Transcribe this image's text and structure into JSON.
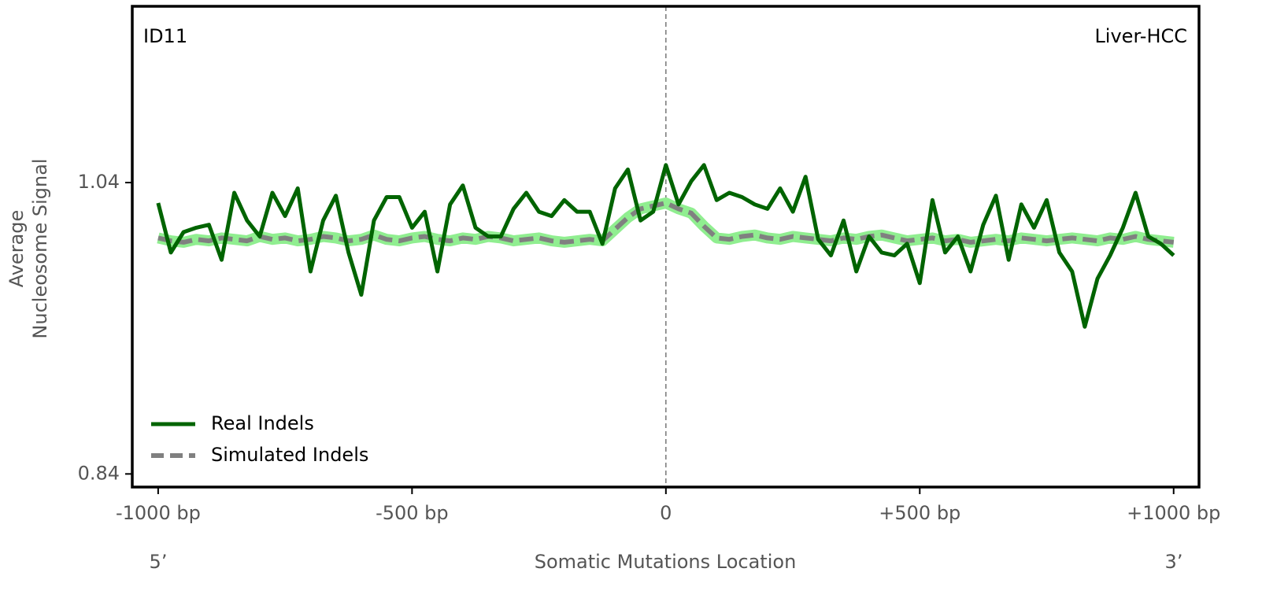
{
  "chart_data": {
    "type": "line",
    "annotations": {
      "top_left": "ID11",
      "top_right": "Liver-HCC",
      "left_end": "5’",
      "right_end": "3’"
    },
    "xlabel": "Somatic Mutations Location",
    "ylabel": [
      "Average",
      "Nucleosome Signal"
    ],
    "x": [
      -1000,
      -975,
      -950,
      -925,
      -900,
      -875,
      -850,
      -825,
      -800,
      -775,
      -750,
      -725,
      -700,
      -675,
      -650,
      -625,
      -600,
      -575,
      -550,
      -525,
      -500,
      -475,
      -450,
      -425,
      -400,
      -375,
      -350,
      -325,
      -300,
      -275,
      -250,
      -225,
      -200,
      -175,
      -150,
      -125,
      -100,
      -75,
      -50,
      -25,
      0,
      25,
      50,
      75,
      100,
      125,
      150,
      175,
      200,
      225,
      250,
      275,
      300,
      325,
      350,
      375,
      400,
      425,
      450,
      475,
      500,
      525,
      550,
      575,
      600,
      625,
      650,
      675,
      700,
      725,
      750,
      775,
      800,
      825,
      850,
      875,
      900,
      925,
      950,
      975,
      1000
    ],
    "series": [
      {
        "name": "Real Indels",
        "color": "#006400",
        "values": [
          1.026,
          0.992,
          1.006,
          1.009,
          1.011,
          0.987,
          1.033,
          1.014,
          1.003,
          1.033,
          1.017,
          1.036,
          0.979,
          1.014,
          1.031,
          0.992,
          0.963,
          1.014,
          1.03,
          1.03,
          1.009,
          1.02,
          0.979,
          1.025,
          1.038,
          1.009,
          1.003,
          1.003,
          1.022,
          1.033,
          1.02,
          1.017,
          1.028,
          1.02,
          1.02,
          0.998,
          1.036,
          1.049,
          1.014,
          1.02,
          1.052,
          1.025,
          1.041,
          1.052,
          1.028,
          1.033,
          1.03,
          1.025,
          1.022,
          1.036,
          1.02,
          1.044,
          1.001,
          0.99,
          1.014,
          0.979,
          1.003,
          0.992,
          0.99,
          0.998,
          0.971,
          1.028,
          0.992,
          1.003,
          0.979,
          1.011,
          1.031,
          0.987,
          1.025,
          1.009,
          1.028,
          0.992,
          0.979,
          0.941,
          0.974,
          0.99,
          1.009,
          1.033,
          1.003,
          0.998,
          0.99
        ]
      },
      {
        "name": "Simulated Indels",
        "color": "#808080",
        "band_color": "#90ee90",
        "dashed": true,
        "values": [
          1.002,
          1.0,
          0.999,
          1.001,
          1.0,
          1.002,
          1.001,
          1.0,
          1.003,
          1.001,
          1.002,
          1.0,
          1.001,
          1.003,
          1.002,
          1.0,
          1.001,
          1.004,
          1.001,
          1.0,
          1.002,
          1.003,
          1.001,
          1.0,
          1.002,
          1.001,
          1.003,
          1.002,
          1.0,
          1.001,
          1.002,
          1.0,
          0.999,
          1.0,
          1.001,
          1.0,
          1.008,
          1.016,
          1.022,
          1.024,
          1.026,
          1.022,
          1.019,
          1.01,
          1.002,
          1.001,
          1.003,
          1.004,
          1.002,
          1.001,
          1.003,
          1.002,
          1.001,
          1.0,
          1.002,
          1.001,
          1.003,
          1.004,
          1.002,
          1.0,
          1.001,
          1.002,
          1.0,
          1.001,
          0.999,
          1.0,
          1.001,
          1.0,
          1.002,
          1.001,
          1.0,
          1.001,
          1.002,
          1.001,
          1.0,
          1.002,
          1.001,
          1.003,
          1.001,
          1.0,
          0.999
        ]
      }
    ],
    "xlim": [
      -1051,
      1050
    ],
    "ylim": [
      0.831,
      1.161
    ],
    "xticks": [
      {
        "value": -1000,
        "label": "-1000 bp"
      },
      {
        "value": -500,
        "label": "-500 bp"
      },
      0,
      {
        "value": 500,
        "label": "+500 bp"
      },
      {
        "value": 1000,
        "label": "+1000 bp"
      }
    ],
    "yticks": [
      0.84,
      1.04
    ],
    "vline": 0,
    "legend": "lower left",
    "grid": false
  }
}
